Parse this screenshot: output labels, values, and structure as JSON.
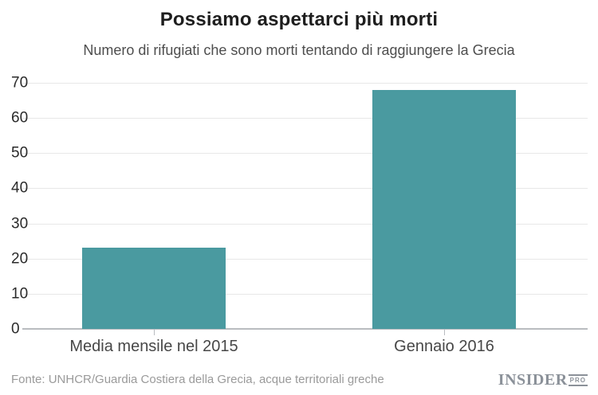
{
  "chart_data": {
    "type": "bar",
    "title": "Possiamo aspettarci più morti",
    "subtitle": "Numero di rifugiati che sono morti tentando di raggiungere la Grecia",
    "categories": [
      "Media mensile nel 2015",
      "Gennaio 2016"
    ],
    "values": [
      23,
      68
    ],
    "xlabel": "",
    "ylabel": "",
    "ylim": [
      0,
      70
    ],
    "yticks": [
      0,
      10,
      20,
      30,
      40,
      50,
      60,
      70
    ],
    "grid": true,
    "legend": false,
    "bar_color": "#4a9aa0",
    "gridline_color": "#e8e8e8",
    "axis_color": "#b9bcc0"
  },
  "footer": {
    "source": "Fonte: UNHCR/Guardia Costiera della Grecia, acque territoriali greche",
    "logo_main": "INSIDER",
    "logo_sub": "PRO"
  }
}
